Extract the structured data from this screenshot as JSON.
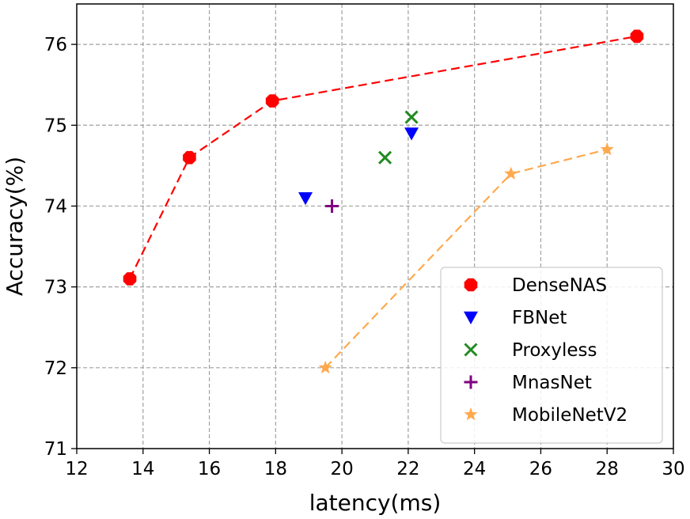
{
  "chart_data": {
    "type": "scatter",
    "title": "",
    "xlabel": "latency(ms)",
    "ylabel": "Accuracy(%)",
    "xlim": [
      12,
      30
    ],
    "ylim": [
      71,
      76.5
    ],
    "xticks": [
      12,
      14,
      16,
      18,
      20,
      22,
      24,
      26,
      28,
      30
    ],
    "yticks": [
      71,
      72,
      73,
      74,
      75,
      76
    ],
    "grid": true,
    "legend_position": "bottom-right",
    "series": [
      {
        "name": "DenseNAS",
        "marker": "octagon",
        "color": "#ff0000",
        "line": true,
        "x": [
          13.6,
          15.4,
          17.9,
          28.9
        ],
        "y": [
          73.1,
          74.6,
          75.3,
          76.1
        ]
      },
      {
        "name": "FBNet",
        "marker": "triangle-down",
        "color": "#0000ff",
        "line": false,
        "x": [
          18.9,
          22.1
        ],
        "y": [
          74.1,
          74.9
        ]
      },
      {
        "name": "Proxyless",
        "marker": "x",
        "color": "#228b22",
        "line": false,
        "x": [
          21.3,
          22.1
        ],
        "y": [
          74.6,
          75.1
        ]
      },
      {
        "name": "MnasNet",
        "marker": "plus",
        "color": "#800080",
        "line": false,
        "x": [
          19.7
        ],
        "y": [
          74.0
        ]
      },
      {
        "name": "MobileNetV2",
        "marker": "star",
        "color": "#ffa94d",
        "line": true,
        "x": [
          19.5,
          25.1,
          28.0
        ],
        "y": [
          72.0,
          74.4,
          74.7
        ]
      }
    ]
  }
}
